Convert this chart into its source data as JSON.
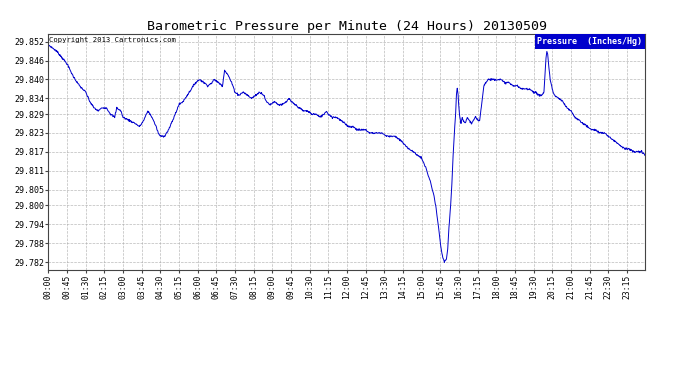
{
  "title": "Barometric Pressure per Minute (24 Hours) 20130509",
  "copyright": "Copyright 2013 Cartronics.com",
  "legend_label": "Pressure  (Inches/Hg)",
  "ylabel_ticks": [
    29.782,
    29.788,
    29.794,
    29.8,
    29.805,
    29.811,
    29.817,
    29.823,
    29.829,
    29.834,
    29.84,
    29.846,
    29.852
  ],
  "ylim": [
    29.7795,
    29.8545
  ],
  "x_tick_labels": [
    "00:00",
    "00:45",
    "01:30",
    "02:15",
    "03:00",
    "03:45",
    "04:30",
    "05:15",
    "06:00",
    "06:45",
    "07:30",
    "08:15",
    "09:00",
    "09:45",
    "10:30",
    "11:15",
    "12:00",
    "12:45",
    "13:30",
    "14:15",
    "15:00",
    "15:45",
    "16:30",
    "17:15",
    "18:00",
    "18:45",
    "19:30",
    "20:15",
    "21:00",
    "21:45",
    "22:30",
    "23:15"
  ],
  "line_color": "#0000cc",
  "bg_color": "#ffffff",
  "grid_color": "#aaaaaa",
  "title_color": "#000000",
  "copyright_color": "#000000",
  "legend_bg": "#0000cc",
  "legend_text_color": "#ffffff",
  "title_fontsize": 9.5,
  "tick_fontsize": 5.8,
  "ytick_fontsize": 6.0,
  "copyright_fontsize": 5.2,
  "legend_fontsize": 6.0,
  "control_points": [
    [
      0,
      29.851
    ],
    [
      20,
      29.849
    ],
    [
      45,
      29.845
    ],
    [
      60,
      29.841
    ],
    [
      75,
      29.838
    ],
    [
      90,
      29.836
    ],
    [
      100,
      29.833
    ],
    [
      110,
      29.831
    ],
    [
      120,
      29.83
    ],
    [
      130,
      29.831
    ],
    [
      140,
      29.831
    ],
    [
      150,
      29.829
    ],
    [
      160,
      29.828
    ],
    [
      165,
      29.831
    ],
    [
      175,
      29.83
    ],
    [
      180,
      29.828
    ],
    [
      195,
      29.827
    ],
    [
      210,
      29.826
    ],
    [
      220,
      29.825
    ],
    [
      230,
      29.827
    ],
    [
      240,
      29.83
    ],
    [
      250,
      29.828
    ],
    [
      260,
      29.825
    ],
    [
      265,
      29.823
    ],
    [
      270,
      29.822
    ],
    [
      280,
      29.822
    ],
    [
      290,
      29.824
    ],
    [
      300,
      29.827
    ],
    [
      315,
      29.832
    ],
    [
      325,
      29.833
    ],
    [
      340,
      29.836
    ],
    [
      355,
      29.839
    ],
    [
      365,
      29.84
    ],
    [
      375,
      29.839
    ],
    [
      385,
      29.838
    ],
    [
      395,
      29.839
    ],
    [
      400,
      29.84
    ],
    [
      410,
      29.839
    ],
    [
      420,
      29.838
    ],
    [
      425,
      29.843
    ],
    [
      435,
      29.841
    ],
    [
      445,
      29.838
    ],
    [
      450,
      29.836
    ],
    [
      460,
      29.835
    ],
    [
      470,
      29.836
    ],
    [
      480,
      29.835
    ],
    [
      490,
      29.834
    ],
    [
      500,
      29.835
    ],
    [
      510,
      29.836
    ],
    [
      520,
      29.835
    ],
    [
      525,
      29.833
    ],
    [
      535,
      29.832
    ],
    [
      545,
      29.833
    ],
    [
      555,
      29.832
    ],
    [
      565,
      29.832
    ],
    [
      575,
      29.833
    ],
    [
      580,
      29.834
    ],
    [
      585,
      29.833
    ],
    [
      595,
      29.832
    ],
    [
      605,
      29.831
    ],
    [
      615,
      29.83
    ],
    [
      625,
      29.83
    ],
    [
      635,
      29.829
    ],
    [
      645,
      29.829
    ],
    [
      655,
      29.828
    ],
    [
      665,
      29.829
    ],
    [
      670,
      29.83
    ],
    [
      675,
      29.829
    ],
    [
      685,
      29.828
    ],
    [
      695,
      29.828
    ],
    [
      705,
      29.827
    ],
    [
      715,
      29.826
    ],
    [
      725,
      29.825
    ],
    [
      735,
      29.825
    ],
    [
      745,
      29.824
    ],
    [
      755,
      29.824
    ],
    [
      765,
      29.824
    ],
    [
      775,
      29.823
    ],
    [
      785,
      29.823
    ],
    [
      795,
      29.823
    ],
    [
      805,
      29.823
    ],
    [
      815,
      29.822
    ],
    [
      825,
      29.822
    ],
    [
      835,
      29.822
    ],
    [
      845,
      29.821
    ],
    [
      855,
      29.82
    ],
    [
      860,
      29.819
    ],
    [
      870,
      29.818
    ],
    [
      880,
      29.817
    ],
    [
      890,
      29.816
    ],
    [
      900,
      29.815
    ],
    [
      910,
      29.812
    ],
    [
      920,
      29.808
    ],
    [
      930,
      29.803
    ],
    [
      935,
      29.799
    ],
    [
      940,
      29.794
    ],
    [
      945,
      29.788
    ],
    [
      950,
      29.784
    ],
    [
      955,
      29.782
    ],
    [
      960,
      29.783
    ],
    [
      963,
      29.786
    ],
    [
      966,
      29.793
    ],
    [
      970,
      29.8
    ],
    [
      973,
      29.807
    ],
    [
      976,
      29.816
    ],
    [
      979,
      29.823
    ],
    [
      982,
      29.829
    ],
    [
      984,
      29.835
    ],
    [
      986,
      29.837
    ],
    [
      988,
      29.835
    ],
    [
      990,
      29.831
    ],
    [
      992,
      29.828
    ],
    [
      995,
      29.826
    ],
    [
      998,
      29.828
    ],
    [
      1000,
      29.827
    ],
    [
      1005,
      29.826
    ],
    [
      1010,
      29.828
    ],
    [
      1015,
      29.827
    ],
    [
      1020,
      29.826
    ],
    [
      1025,
      29.827
    ],
    [
      1030,
      29.828
    ],
    [
      1035,
      29.827
    ],
    [
      1040,
      29.827
    ],
    [
      1050,
      29.838
    ],
    [
      1060,
      29.84
    ],
    [
      1065,
      29.84
    ],
    [
      1070,
      29.84
    ],
    [
      1075,
      29.84
    ],
    [
      1080,
      29.84
    ],
    [
      1090,
      29.84
    ],
    [
      1100,
      29.839
    ],
    [
      1110,
      29.839
    ],
    [
      1120,
      29.838
    ],
    [
      1130,
      29.838
    ],
    [
      1140,
      29.837
    ],
    [
      1150,
      29.837
    ],
    [
      1160,
      29.837
    ],
    [
      1170,
      29.836
    ],
    [
      1175,
      29.836
    ],
    [
      1180,
      29.835
    ],
    [
      1190,
      29.835
    ],
    [
      1195,
      29.836
    ],
    [
      1200,
      29.847
    ],
    [
      1202,
      29.849
    ],
    [
      1204,
      29.848
    ],
    [
      1206,
      29.845
    ],
    [
      1210,
      29.84
    ],
    [
      1215,
      29.837
    ],
    [
      1220,
      29.835
    ],
    [
      1230,
      29.834
    ],
    [
      1240,
      29.833
    ],
    [
      1245,
      29.832
    ],
    [
      1250,
      29.831
    ],
    [
      1260,
      29.83
    ],
    [
      1265,
      29.829
    ],
    [
      1270,
      29.828
    ],
    [
      1280,
      29.827
    ],
    [
      1290,
      29.826
    ],
    [
      1300,
      29.825
    ],
    [
      1310,
      29.824
    ],
    [
      1320,
      29.824
    ],
    [
      1330,
      29.823
    ],
    [
      1340,
      29.823
    ],
    [
      1350,
      29.822
    ],
    [
      1360,
      29.821
    ],
    [
      1370,
      29.82
    ],
    [
      1380,
      29.819
    ],
    [
      1390,
      29.818
    ],
    [
      1400,
      29.818
    ],
    [
      1410,
      29.817
    ],
    [
      1420,
      29.817
    ],
    [
      1430,
      29.817
    ],
    [
      1439,
      29.816
    ]
  ]
}
